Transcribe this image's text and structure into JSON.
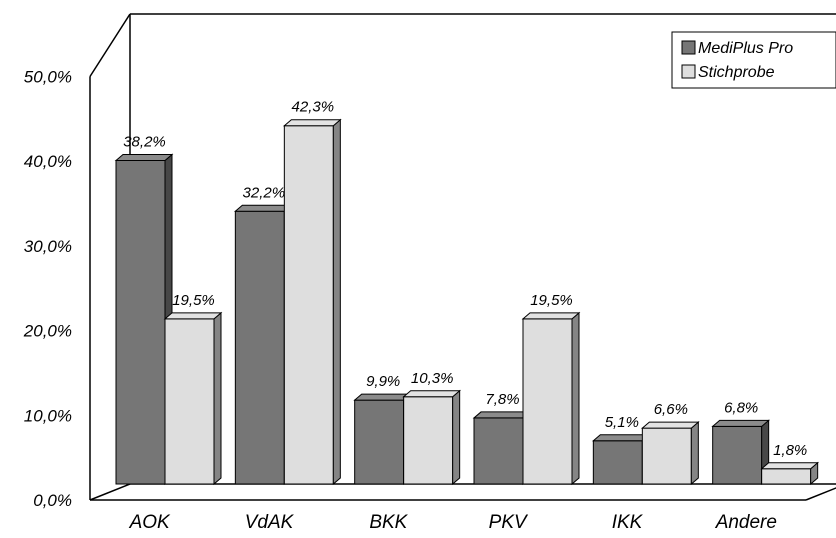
{
  "chart_data": {
    "type": "bar",
    "categories": [
      "AOK",
      "VdAK",
      "BKK",
      "PKV",
      "IKK",
      "Andere"
    ],
    "series": [
      {
        "name": "MediPlus Pro",
        "values": [
          38.2,
          32.2,
          9.9,
          7.8,
          5.1,
          6.8
        ],
        "labels": [
          "38,2%",
          "32,2%",
          "9,9%",
          "7,8%",
          "5,1%",
          "6,8%"
        ],
        "color": "#767676"
      },
      {
        "name": "Stichprobe",
        "values": [
          19.5,
          42.3,
          10.3,
          19.5,
          6.6,
          1.8
        ],
        "labels": [
          "19,5%",
          "42,3%",
          "10,3%",
          "19,5%",
          "6,6%",
          "1,8%"
        ],
        "color": "#dedede"
      }
    ],
    "y_ticks": [
      {
        "value": 0,
        "label": "0,0%"
      },
      {
        "value": 10,
        "label": "10,0%"
      },
      {
        "value": 20,
        "label": "20,0%"
      },
      {
        "value": 30,
        "label": "30,0%"
      },
      {
        "value": 40,
        "label": "40,0%"
      },
      {
        "value": 50,
        "label": "50,0%"
      }
    ],
    "ylim": [
      0,
      50
    ],
    "grid": false,
    "legend_position": "top-right",
    "style": "3d-bar"
  }
}
